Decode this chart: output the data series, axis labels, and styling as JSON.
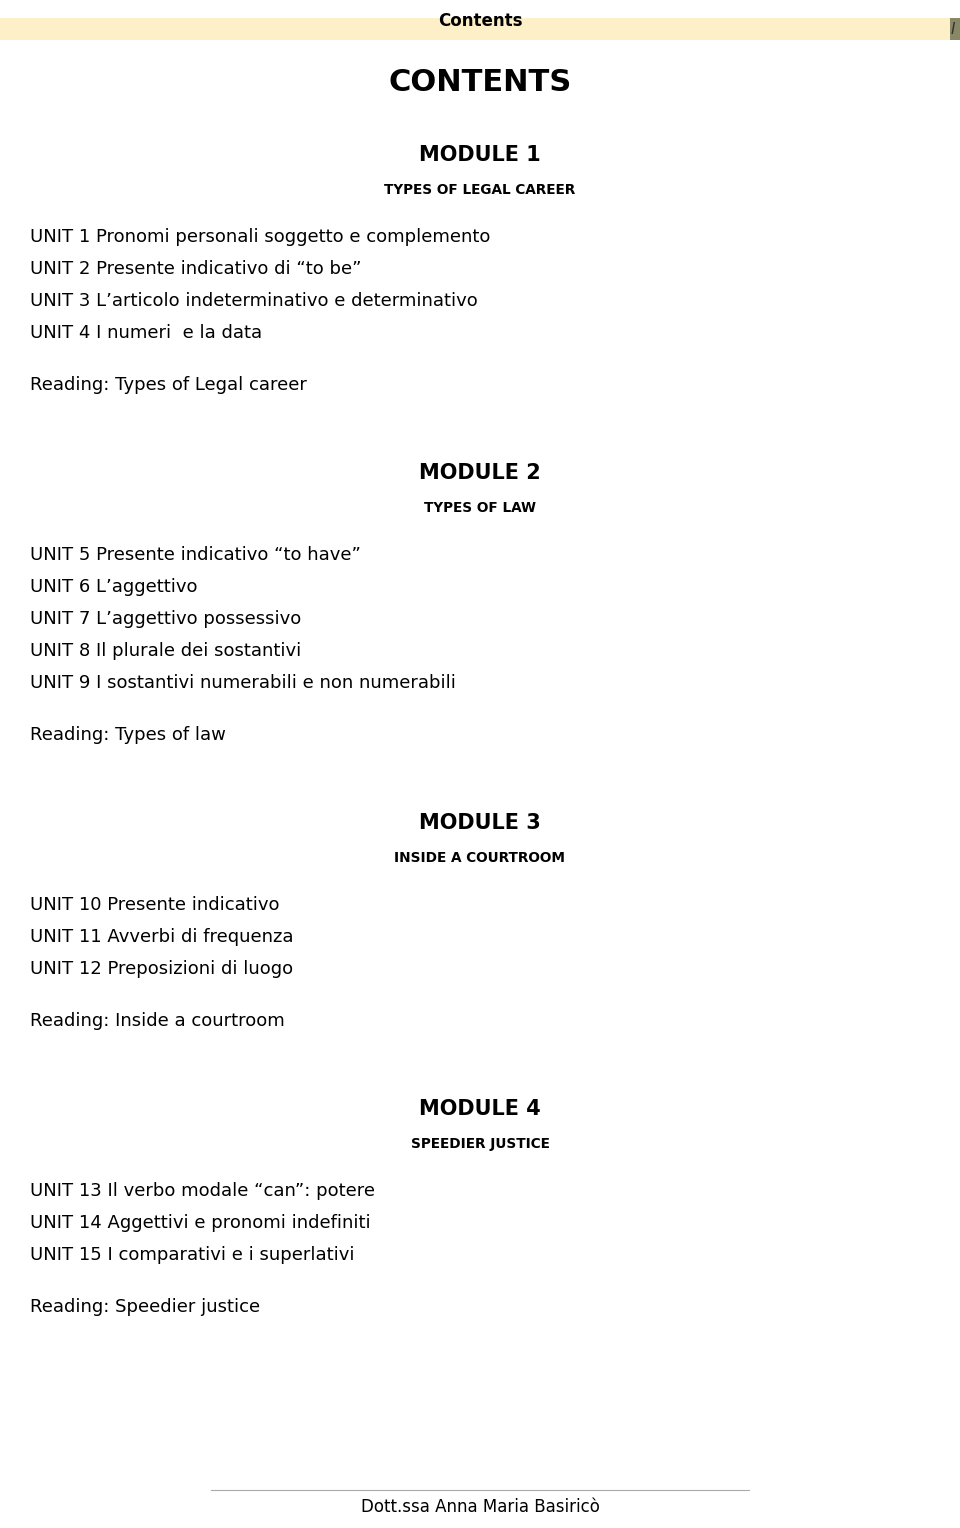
{
  "bg_color": "#ffffff",
  "header_bar_color": "#fdefc8",
  "header_text": "Contents",
  "page_indicator": "I",
  "main_title": "CONTENTS",
  "footer_text": "Dott.ssa Anna Maria Basiricò",
  "modules": [
    {
      "title": "MODULE 1",
      "subtitle": "Types of Legal Career",
      "units": [
        "UNIT 1 Pronomi personali soggetto e complemento",
        "UNIT 2 Presente indicativo di “to be”",
        "UNIT 3 L’articolo indeterminativo e determinativo",
        "UNIT 4 I numeri  e la data"
      ],
      "reading": "Reading: Types of Legal career"
    },
    {
      "title": "MODULE 2",
      "subtitle": "Types of Law",
      "units": [
        "UNIT 5 Presente indicativo “to have”",
        "UNIT 6 L’aggettivo",
        "UNIT 7 L’aggettivo possessivo",
        "UNIT 8 Il plurale dei sostantivi",
        "UNIT 9 I sostantivi numerabili e non numerabili"
      ],
      "reading": "Reading: Types of law"
    },
    {
      "title": "MODULE 3",
      "subtitle": "Inside a Courtroom",
      "units": [
        "UNIT 10 Presente indicativo",
        "UNIT 11 Avverbi di frequenza",
        "UNIT 12 Preposizioni di luogo"
      ],
      "reading": "Reading: Inside a courtroom"
    },
    {
      "title": "MODULE 4",
      "subtitle": "Speedier Justice",
      "units": [
        "UNIT 13 Il verbo modale “can”: potere",
        "UNIT 14 Aggettivi e pronomi indefiniti",
        "UNIT 15 I comparativi e i superlativi"
      ],
      "reading": "Reading: Speedier justice"
    }
  ],
  "header_fontsize": 12,
  "main_title_fontsize": 22,
  "module_title_fontsize": 15,
  "subtitle_fontsize": 12,
  "unit_fontsize": 13,
  "reading_fontsize": 13,
  "footer_fontsize": 12
}
